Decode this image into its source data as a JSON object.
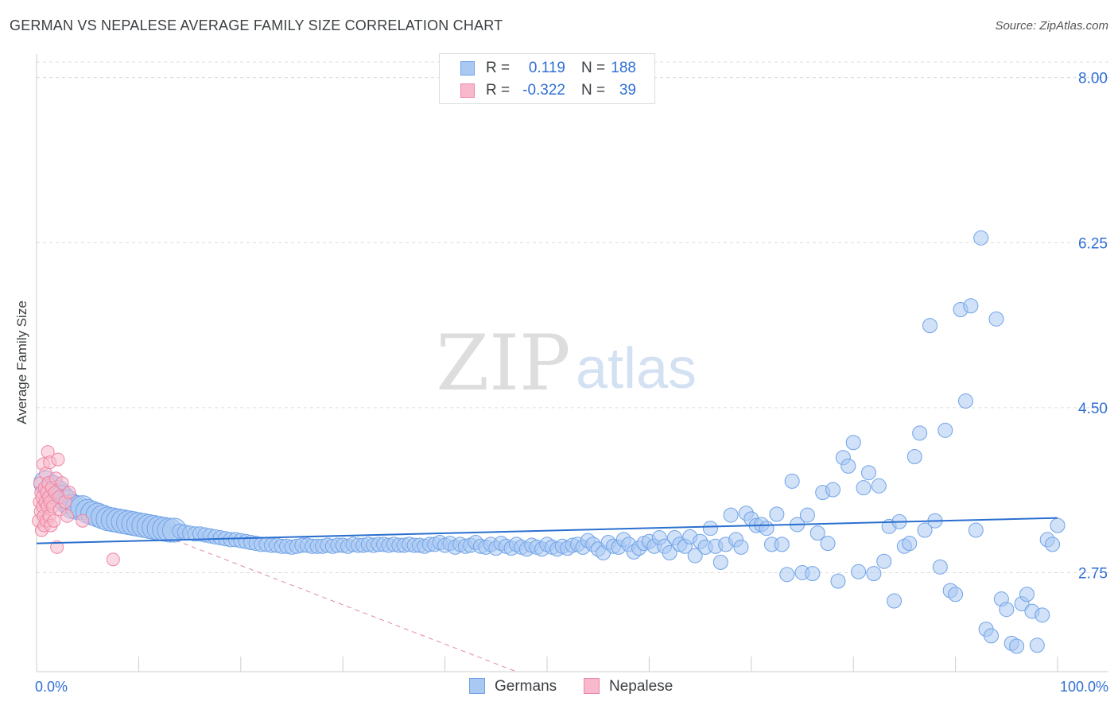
{
  "header": {
    "title": "GERMAN VS NEPALESE AVERAGE FAMILY SIZE CORRELATION CHART",
    "source": "Source: ZipAtlas.com"
  },
  "watermark": {
    "zip": "ZIP",
    "atlas": "atlas"
  },
  "legend": {
    "rows": [
      {
        "name": "Germans",
        "r_label": "R =",
        "r_value": "0.119",
        "n_label": "N =",
        "n_value": "188",
        "color": "#6fa3e8"
      },
      {
        "name": "Nepalese",
        "r_label": "R =",
        "r_value": "-0.322",
        "n_label": "N =",
        "n_value": "39",
        "color": "#f08aa8"
      }
    ]
  },
  "bottom_legend": {
    "germans": "Germans",
    "nepalese": "Nepalese"
  },
  "colors": {
    "blue_fill": "#a9c8f2",
    "blue_stroke": "#6fa3e8",
    "blue_line": "#2a6fcf",
    "pink_fill": "#f7b9cb",
    "pink_stroke": "#ee85a5",
    "pink_line": "#e28aa5",
    "grid": "#dcdcdc",
    "axis_text": "#2f6fd4"
  },
  "chart_data": {
    "type": "scatter",
    "title": "GERMAN VS NEPALESE AVERAGE FAMILY SIZE CORRELATION CHART",
    "xlabel": "",
    "ylabel": "Average Family Size",
    "xlim": [
      0,
      100
    ],
    "ylim": [
      1.7,
      8.25
    ],
    "x_tick_labels": [
      "0.0%",
      "100.0%"
    ],
    "y_ticks": [
      2.75,
      4.5,
      6.25,
      8.0
    ],
    "y_tick_labels": [
      "2.75",
      "4.50",
      "6.25",
      "8.00"
    ],
    "grid": true,
    "legend_position": "top-center",
    "series": [
      {
        "name": "Germans",
        "r": 0.119,
        "n": 188,
        "trend": {
          "x": [
            0,
            100
          ],
          "y": [
            3.06,
            3.33
          ]
        },
        "points": [
          [
            0.9,
            3.7,
            3
          ],
          [
            1.6,
            3.65,
            3
          ],
          [
            2.1,
            3.6,
            3
          ],
          [
            2.5,
            3.55,
            3
          ],
          [
            3.0,
            3.5,
            3
          ],
          [
            3.5,
            3.45,
            3
          ],
          [
            4.0,
            3.44,
            3
          ],
          [
            4.5,
            3.44,
            3
          ],
          [
            5.0,
            3.4,
            3
          ],
          [
            5.5,
            3.38,
            3
          ],
          [
            6.0,
            3.36,
            3
          ],
          [
            6.5,
            3.34,
            3
          ],
          [
            7.0,
            3.32,
            3
          ],
          [
            7.5,
            3.31,
            3
          ],
          [
            8.0,
            3.3,
            3
          ],
          [
            8.5,
            3.29,
            3
          ],
          [
            9.0,
            3.28,
            3
          ],
          [
            9.5,
            3.27,
            3
          ],
          [
            10.0,
            3.26,
            3
          ],
          [
            10.5,
            3.25,
            3
          ],
          [
            11.0,
            3.24,
            3
          ],
          [
            11.5,
            3.23,
            3
          ],
          [
            12.0,
            3.22,
            3
          ],
          [
            12.5,
            3.21,
            3
          ],
          [
            13.0,
            3.2,
            3
          ],
          [
            13.5,
            3.2,
            3
          ],
          [
            14.0,
            3.19,
            2
          ],
          [
            14.5,
            3.18,
            2
          ],
          [
            15.0,
            3.17,
            2
          ],
          [
            15.5,
            3.16,
            2
          ],
          [
            16.0,
            3.16,
            2
          ],
          [
            16.5,
            3.15,
            2
          ],
          [
            17.0,
            3.14,
            2
          ],
          [
            17.5,
            3.13,
            2
          ],
          [
            18.0,
            3.12,
            2
          ],
          [
            18.5,
            3.11,
            2
          ],
          [
            19.0,
            3.1,
            2
          ],
          [
            19.5,
            3.1,
            2
          ],
          [
            20.0,
            3.09,
            2
          ],
          [
            20.5,
            3.08,
            2
          ],
          [
            21.0,
            3.07,
            2
          ],
          [
            21.5,
            3.06,
            2
          ],
          [
            22.0,
            3.05,
            2
          ],
          [
            22.5,
            3.05,
            2
          ],
          [
            23.0,
            3.04,
            2
          ],
          [
            23.5,
            3.04,
            2
          ],
          [
            24.0,
            3.03,
            2
          ],
          [
            24.5,
            3.03,
            2
          ],
          [
            25.0,
            3.02,
            2
          ],
          [
            25.5,
            3.03,
            2
          ],
          [
            26.0,
            3.04,
            2
          ],
          [
            26.5,
            3.04,
            2
          ],
          [
            27.0,
            3.03,
            2
          ],
          [
            27.5,
            3.03,
            2
          ],
          [
            28.0,
            3.03,
            2
          ],
          [
            28.5,
            3.04,
            2
          ],
          [
            29.0,
            3.03,
            2
          ],
          [
            29.5,
            3.04,
            2
          ],
          [
            30.0,
            3.04,
            2
          ],
          [
            30.5,
            3.03,
            2
          ],
          [
            31.0,
            3.05,
            2
          ],
          [
            31.5,
            3.04,
            2
          ],
          [
            32.0,
            3.04,
            2
          ],
          [
            32.5,
            3.05,
            2
          ],
          [
            33.0,
            3.04,
            2
          ],
          [
            33.5,
            3.05,
            2
          ],
          [
            34.0,
            3.05,
            2
          ],
          [
            34.5,
            3.04,
            2
          ],
          [
            35.0,
            3.05,
            2
          ],
          [
            35.5,
            3.04,
            2
          ],
          [
            36.0,
            3.04,
            2
          ],
          [
            36.5,
            3.05,
            2
          ],
          [
            37.0,
            3.04,
            2
          ],
          [
            37.5,
            3.04,
            2
          ],
          [
            38.0,
            3.03,
            2
          ],
          [
            38.5,
            3.05,
            2
          ],
          [
            39.0,
            3.05,
            2
          ],
          [
            39.5,
            3.07,
            2
          ],
          [
            40.0,
            3.04,
            2
          ],
          [
            40.5,
            3.06,
            2
          ],
          [
            41.0,
            3.02,
            2
          ],
          [
            41.5,
            3.05,
            2
          ],
          [
            42.0,
            3.03,
            2
          ],
          [
            42.5,
            3.04,
            2
          ],
          [
            43.0,
            3.07,
            2
          ],
          [
            43.5,
            3.03,
            2
          ],
          [
            44.0,
            3.02,
            2
          ],
          [
            44.5,
            3.05,
            2
          ],
          [
            45.0,
            3.01,
            2
          ],
          [
            45.5,
            3.06,
            2
          ],
          [
            46.0,
            3.03,
            2
          ],
          [
            46.5,
            3.01,
            2
          ],
          [
            47.0,
            3.05,
            2
          ],
          [
            47.5,
            3.02,
            2
          ],
          [
            48.0,
            3.0,
            2
          ],
          [
            48.5,
            3.04,
            2
          ],
          [
            49.0,
            3.02,
            2
          ],
          [
            49.5,
            3.0,
            2
          ],
          [
            50.0,
            3.05,
            2
          ],
          [
            50.5,
            3.02,
            2
          ],
          [
            51.0,
            3.0,
            2
          ],
          [
            51.5,
            3.03,
            2
          ],
          [
            52.0,
            3.01,
            2
          ],
          [
            52.5,
            3.04,
            2
          ],
          [
            53.0,
            3.05,
            2
          ],
          [
            53.5,
            3.02,
            2
          ],
          [
            54.0,
            3.09,
            2
          ],
          [
            54.5,
            3.05,
            2
          ],
          [
            55.0,
            3.0,
            2
          ],
          [
            55.5,
            2.96,
            2
          ],
          [
            56.0,
            3.07,
            2
          ],
          [
            56.5,
            3.03,
            2
          ],
          [
            57.0,
            3.02,
            2
          ],
          [
            57.5,
            3.1,
            2
          ],
          [
            58.0,
            3.05,
            2
          ],
          [
            58.5,
            2.97,
            2
          ],
          [
            59.0,
            3.01,
            2
          ],
          [
            59.5,
            3.06,
            2
          ],
          [
            60.0,
            3.08,
            2
          ],
          [
            60.5,
            3.03,
            2
          ],
          [
            61.0,
            3.12,
            2
          ],
          [
            61.5,
            3.03,
            2
          ],
          [
            62.0,
            2.96,
            2
          ],
          [
            62.5,
            3.12,
            2
          ],
          [
            63.0,
            3.05,
            2
          ],
          [
            63.5,
            3.03,
            2
          ],
          [
            64.0,
            3.13,
            2
          ],
          [
            64.5,
            2.93,
            2
          ],
          [
            65.0,
            3.08,
            2
          ],
          [
            65.5,
            3.02,
            2
          ],
          [
            66.0,
            3.22,
            2
          ],
          [
            66.5,
            3.03,
            2
          ],
          [
            67.0,
            2.86,
            2
          ],
          [
            67.5,
            3.05,
            2
          ],
          [
            68.0,
            3.36,
            2
          ],
          [
            68.5,
            3.1,
            2
          ],
          [
            69.0,
            3.02,
            2
          ],
          [
            69.5,
            3.38,
            2
          ],
          [
            70.0,
            3.32,
            2
          ],
          [
            70.5,
            3.25,
            2
          ],
          [
            71.0,
            3.26,
            2
          ],
          [
            71.5,
            3.22,
            2
          ],
          [
            72.0,
            3.05,
            2
          ],
          [
            72.5,
            3.37,
            2
          ],
          [
            73.0,
            3.05,
            2
          ],
          [
            73.5,
            2.73,
            2
          ],
          [
            74.0,
            3.72,
            2
          ],
          [
            74.5,
            3.26,
            2
          ],
          [
            75.0,
            2.75,
            2
          ],
          [
            75.5,
            3.36,
            2
          ],
          [
            76.0,
            2.74,
            2
          ],
          [
            76.5,
            3.17,
            2
          ],
          [
            77.0,
            3.6,
            2
          ],
          [
            77.5,
            3.06,
            2
          ],
          [
            78.0,
            3.63,
            2
          ],
          [
            78.5,
            2.66,
            2
          ],
          [
            79.0,
            3.97,
            2
          ],
          [
            79.5,
            3.88,
            2
          ],
          [
            80.0,
            4.13,
            2
          ],
          [
            80.5,
            2.76,
            2
          ],
          [
            81.0,
            3.65,
            2
          ],
          [
            81.5,
            3.81,
            2
          ],
          [
            82.0,
            2.74,
            2
          ],
          [
            82.5,
            3.67,
            2
          ],
          [
            83.0,
            2.87,
            2
          ],
          [
            83.5,
            3.24,
            2
          ],
          [
            84.0,
            2.45,
            2
          ],
          [
            84.5,
            3.29,
            2
          ],
          [
            85.0,
            3.03,
            2
          ],
          [
            85.5,
            3.06,
            2
          ],
          [
            86.0,
            3.98,
            2
          ],
          [
            86.5,
            4.23,
            2
          ],
          [
            87.0,
            3.2,
            2
          ],
          [
            87.5,
            5.37,
            2
          ],
          [
            88.0,
            3.3,
            2
          ],
          [
            88.5,
            2.81,
            2
          ],
          [
            89.0,
            4.26,
            2
          ],
          [
            89.5,
            2.56,
            2
          ],
          [
            90.0,
            2.52,
            2
          ],
          [
            90.5,
            5.54,
            2
          ],
          [
            91.0,
            4.57,
            2
          ],
          [
            91.5,
            5.58,
            2
          ],
          [
            92.0,
            3.2,
            2
          ],
          [
            92.5,
            6.3,
            2
          ],
          [
            93.0,
            2.15,
            2
          ],
          [
            93.5,
            2.08,
            2
          ],
          [
            94.0,
            5.44,
            2
          ],
          [
            94.5,
            2.47,
            2
          ],
          [
            95.0,
            2.36,
            2
          ],
          [
            95.5,
            2.0,
            2
          ],
          [
            96.0,
            1.97,
            2
          ],
          [
            96.5,
            2.42,
            2
          ],
          [
            97.0,
            2.52,
            2
          ],
          [
            97.5,
            2.34,
            2
          ],
          [
            98.0,
            1.98,
            2
          ],
          [
            98.5,
            2.3,
            2
          ],
          [
            99.0,
            3.1,
            2
          ],
          [
            99.5,
            3.05,
            2
          ],
          [
            100.0,
            3.25,
            2
          ]
        ]
      },
      {
        "name": "Nepalese",
        "r": -0.322,
        "n": 39,
        "trend": {
          "x": [
            0,
            47
          ],
          "y": [
            3.66,
            1.7
          ]
        },
        "points": [
          [
            0.2,
            3.3
          ],
          [
            0.3,
            3.5
          ],
          [
            0.35,
            3.7
          ],
          [
            0.4,
            3.4
          ],
          [
            0.45,
            3.6
          ],
          [
            0.5,
            3.2
          ],
          [
            0.55,
            3.55
          ],
          [
            0.6,
            3.45
          ],
          [
            0.65,
            3.9
          ],
          [
            0.7,
            3.35
          ],
          [
            0.75,
            3.25
          ],
          [
            0.8,
            3.65
          ],
          [
            0.85,
            3.5
          ],
          [
            0.9,
            3.8
          ],
          [
            0.95,
            3.3
          ],
          [
            1.0,
            3.6
          ],
          [
            1.05,
            3.45
          ],
          [
            1.1,
            4.03
          ],
          [
            1.15,
            3.7
          ],
          [
            1.2,
            3.55
          ],
          [
            1.25,
            3.35
          ],
          [
            1.3,
            3.92
          ],
          [
            1.35,
            3.5
          ],
          [
            1.4,
            3.25
          ],
          [
            1.5,
            3.65
          ],
          [
            1.6,
            3.45
          ],
          [
            1.7,
            3.3
          ],
          [
            1.8,
            3.6
          ],
          [
            1.9,
            3.75
          ],
          [
            2.0,
            3.02
          ],
          [
            2.1,
            3.95
          ],
          [
            2.2,
            3.55
          ],
          [
            2.3,
            3.42
          ],
          [
            2.5,
            3.7
          ],
          [
            2.8,
            3.5
          ],
          [
            3.0,
            3.35
          ],
          [
            3.2,
            3.6
          ],
          [
            4.5,
            3.3
          ],
          [
            7.5,
            2.89
          ]
        ]
      }
    ]
  }
}
